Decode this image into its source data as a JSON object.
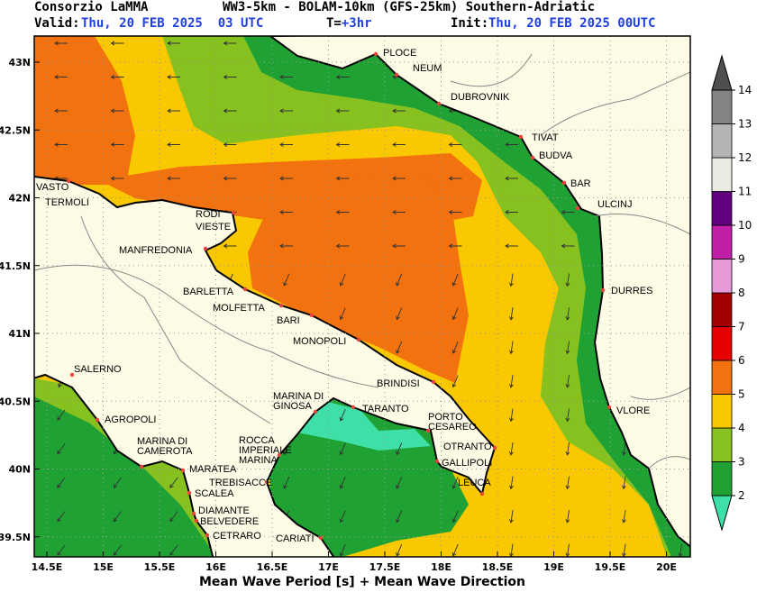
{
  "header": {
    "org": "Consorzio LaMMA",
    "model": "WW3-5km - BOLAM-10km (GFS-25km) Southern-Adriatic",
    "valid_label": "Valid:",
    "valid_time": "Thu, 20 FEB 2025  03 UTC",
    "step_label": "T=",
    "step": "+3hr",
    "init_label": "Init:",
    "init_time": "Thu, 20 FEB 2025 00UTC"
  },
  "map": {
    "lon_ticks": [
      {
        "value": 14.5,
        "label": "14.5E"
      },
      {
        "value": 15,
        "label": "15E"
      },
      {
        "value": 15.5,
        "label": "15.5E"
      },
      {
        "value": 16,
        "label": "16E"
      },
      {
        "value": 16.5,
        "label": "16.5E"
      },
      {
        "value": 17,
        "label": "17E"
      },
      {
        "value": 17.5,
        "label": "17.5E"
      },
      {
        "value": 18,
        "label": "18E"
      },
      {
        "value": 18.5,
        "label": "18.5E"
      },
      {
        "value": 19,
        "label": "19E"
      },
      {
        "value": 19.5,
        "label": "19.5E"
      },
      {
        "value": 20,
        "label": "20E"
      }
    ],
    "lat_ticks": [
      {
        "value": 43,
        "label": "43N"
      },
      {
        "value": 42.5,
        "label": "42.5N"
      },
      {
        "value": 42,
        "label": "42N"
      },
      {
        "value": 41.5,
        "label": "41.5N"
      },
      {
        "value": 41,
        "label": "41N"
      },
      {
        "value": 40.5,
        "label": "40.5N"
      },
      {
        "value": 40,
        "label": "40N"
      },
      {
        "value": 39.5,
        "label": "39.5N"
      }
    ],
    "places": [
      {
        "label": [
          "PLOCE"
        ]
      },
      {
        "label": [
          "NEUM"
        ]
      },
      {
        "label": [
          "DUBROVNIK"
        ]
      },
      {
        "label": [
          "TIVAT"
        ]
      },
      {
        "label": [
          "BUDVA"
        ]
      },
      {
        "label": [
          "BAR"
        ]
      },
      {
        "label": [
          "ULCINJ"
        ]
      },
      {
        "label": [
          "DURRES"
        ]
      },
      {
        "label": [
          "VLORE"
        ]
      },
      {
        "label": [
          "VASTO"
        ]
      },
      {
        "label": [
          "TERMOLI"
        ]
      },
      {
        "label": [
          "RODI"
        ]
      },
      {
        "label": [
          "VIESTE"
        ]
      },
      {
        "label": [
          "MANFREDONIA"
        ]
      },
      {
        "label": [
          "BARLETTA"
        ]
      },
      {
        "label": [
          "MOLFETTA"
        ]
      },
      {
        "label": [
          "BARI"
        ]
      },
      {
        "label": [
          "MONOPOLI"
        ]
      },
      {
        "label": [
          "BRINDISI"
        ]
      },
      {
        "label": [
          "SALERNO"
        ]
      },
      {
        "label": [
          "AGROPOLI"
        ]
      },
      {
        "label": [
          "MARINA  DI",
          "CAMEROTA"
        ]
      },
      {
        "label": [
          "MARATEA"
        ]
      },
      {
        "label": [
          "ROCCA",
          "IMPERIALE",
          "MARINA"
        ]
      },
      {
        "label": [
          "TREBISACCE"
        ]
      },
      {
        "label": [
          "SCALEA"
        ]
      },
      {
        "label": [
          "DIAMANTE"
        ]
      },
      {
        "label": [
          "BELVEDERE"
        ]
      },
      {
        "label": [
          "CETRARO"
        ]
      },
      {
        "label": [
          "CARIATI"
        ]
      },
      {
        "label": [
          "MARINA  DI",
          "GINOSA"
        ]
      },
      {
        "label": [
          "TARANTO"
        ]
      },
      {
        "label": [
          "PORTO",
          "CESAREO"
        ]
      },
      {
        "label": [
          "OTRANTO"
        ]
      },
      {
        "label": [
          "GALLIPOLI"
        ]
      },
      {
        "label": [
          "LEUCA"
        ]
      }
    ]
  },
  "colorbar": {
    "ticks": [
      2,
      3,
      4,
      5,
      6,
      7,
      8,
      9,
      10,
      11,
      12,
      13,
      14
    ],
    "colors": [
      "#3ee0a8",
      "#1fa233",
      "#86c11f",
      "#f9c800",
      "#f27210",
      "#e60000",
      "#a30000",
      "#e69ad8",
      "#c21fa8",
      "#62007e",
      "#ebebe4",
      "#b4b4b4",
      "#838383",
      "#4f4f4f"
    ]
  },
  "footer": "Mean Wave Period [s] + Mean Wave Direction"
}
